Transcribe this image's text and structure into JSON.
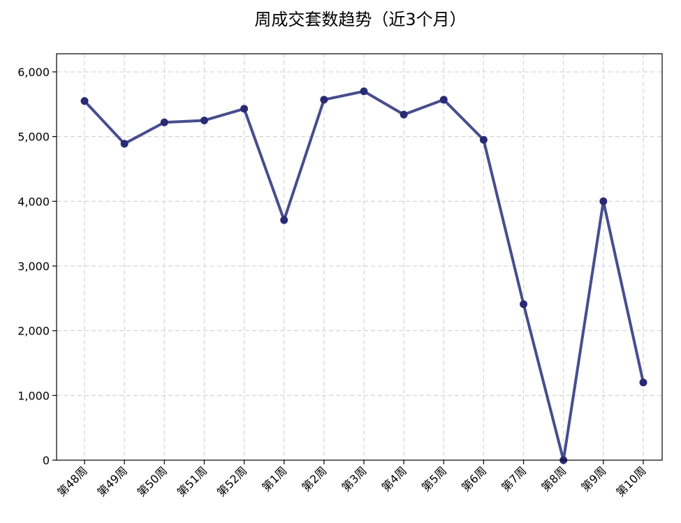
{
  "chart_data": {
    "type": "line",
    "title": "周成交套数趋势（近3个月）",
    "xlabel": "",
    "ylabel": "",
    "categories": [
      "第48周",
      "第49周",
      "第50周",
      "第51周",
      "第52周",
      "第1周",
      "第2周",
      "第3周",
      "第4周",
      "第5周",
      "第6周",
      "第7周",
      "第8周",
      "第9周",
      "第10周"
    ],
    "series": [
      {
        "values": [
          5550,
          4890,
          5220,
          5250,
          5430,
          3710,
          5570,
          5700,
          5340,
          5570,
          4950,
          2410,
          0,
          4000,
          1200
        ]
      }
    ],
    "ylim": [
      0,
      6280
    ],
    "yticks": [
      0,
      1000,
      2000,
      3000,
      4000,
      5000,
      6000
    ],
    "ytick_labels": [
      "0",
      "1,000",
      "2,000",
      "3,000",
      "4,000",
      "5,000",
      "6,000"
    ],
    "grid": true,
    "line_color": "#474d8e",
    "marker_color": "#282a74"
  }
}
